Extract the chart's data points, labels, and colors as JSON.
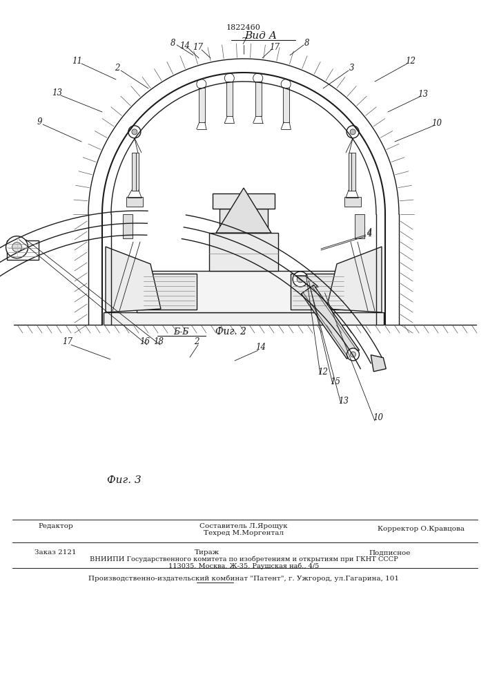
{
  "patent_number": "1822460",
  "view_label": "Вид А",
  "fig2_label": "Фиг. 2",
  "fig3_label": "Фиг. 3",
  "section_label": "Б-Б",
  "bg_color": "#ffffff",
  "line_color": "#1a1a1a",
  "footer_editor": "Редактор",
  "footer_comp": "Составитель Л.Ярощук",
  "footer_tech": "Техред М.Моргентал",
  "footer_corr": "Корректор О.Кравцова",
  "footer_order": "Заказ 2121",
  "footer_tirazh": "Тираж",
  "footer_podp": "Подписное",
  "footer_vniip1": "ВНИИПИ Государственного комитета по изобретениям и открытиям при ГКНТ СССР",
  "footer_vniip2": "113035, Москва, Ж-35, Раушская наб., 4/5",
  "footer_patent": "Производственно-издательский комбинат \"Патент\", г. Ужгород, ул.Гагарина, 101"
}
